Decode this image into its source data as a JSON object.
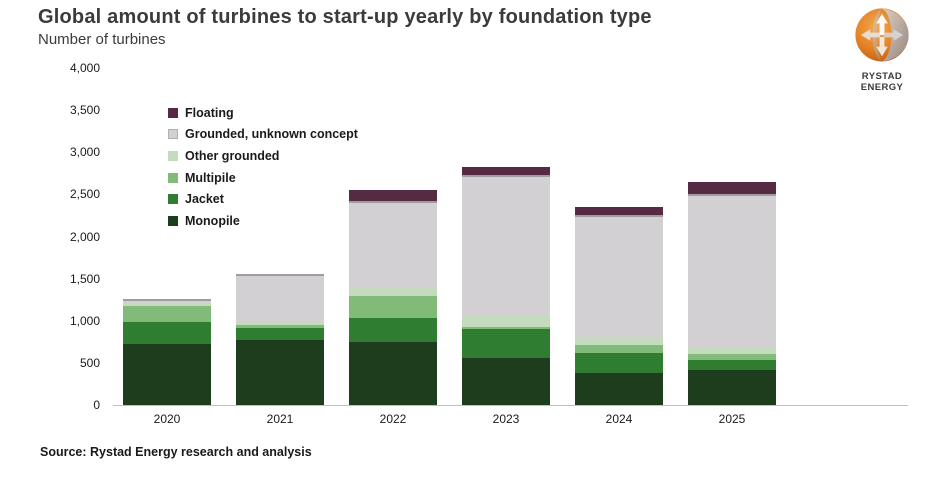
{
  "header": {
    "title": "Global amount of turbines to start-up yearly by foundation type",
    "subtitle": "Number of turbines"
  },
  "logo": {
    "text": "RYSTAD ENERGY"
  },
  "source": "Source: Rystad Energy research and analysis",
  "chart_data": {
    "type": "bar",
    "stacked": true,
    "title": "Global amount of turbines to start-up yearly by foundation type",
    "subtitle": "Number of turbines",
    "xlabel": "",
    "ylabel": "Number of turbines",
    "ylim": [
      0,
      4000
    ],
    "y_ticks": [
      "0",
      "500",
      "1,000",
      "1,500",
      "2,000",
      "2,500",
      "3,000",
      "3,500",
      "4,000"
    ],
    "grid": false,
    "legend_position": "inside-top-left",
    "categories": [
      "2020",
      "2021",
      "2022",
      "2023",
      "2024",
      "2025"
    ],
    "series": [
      {
        "name": "Monopile",
        "color": "#1d3d1c",
        "values": [
          730,
          770,
          750,
          560,
          380,
          420
        ]
      },
      {
        "name": "Jacket",
        "color": "#2e7d31",
        "values": [
          260,
          150,
          280,
          340,
          240,
          120
        ]
      },
      {
        "name": "Multipile",
        "color": "#82ba7a",
        "values": [
          180,
          35,
          270,
          30,
          90,
          70
        ]
      },
      {
        "name": "Other grounded",
        "color": "#c4dcbd",
        "values": [
          40,
          35,
          90,
          130,
          90,
          70
        ]
      },
      {
        "name": "Grounded, unknown concept",
        "color": "#d3d0d3",
        "values": [
          50,
          560,
          1030,
          1670,
          1460,
          1830
        ]
      },
      {
        "name": "Floating",
        "color": "#572a43",
        "values": [
          0,
          0,
          130,
          100,
          90,
          140
        ]
      }
    ],
    "totals": [
      1260,
      1550,
      2550,
      2830,
      2350,
      2650
    ],
    "legend_items_top_to_bottom": [
      "Floating",
      "Grounded, unknown concept",
      "Other grounded",
      "Multipile",
      "Jacket",
      "Monopile"
    ]
  }
}
